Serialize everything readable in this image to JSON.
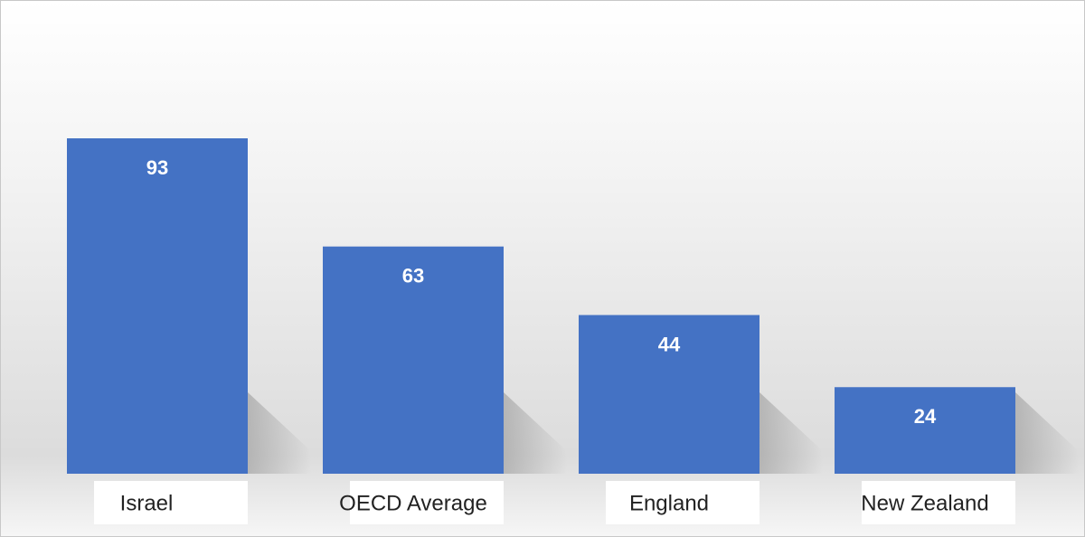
{
  "chart_data": {
    "type": "bar",
    "categories": [
      "Israel",
      "OECD Average",
      "England",
      "New Zealand"
    ],
    "values": [
      93,
      63,
      44,
      24
    ],
    "color": "#4472c4"
  }
}
